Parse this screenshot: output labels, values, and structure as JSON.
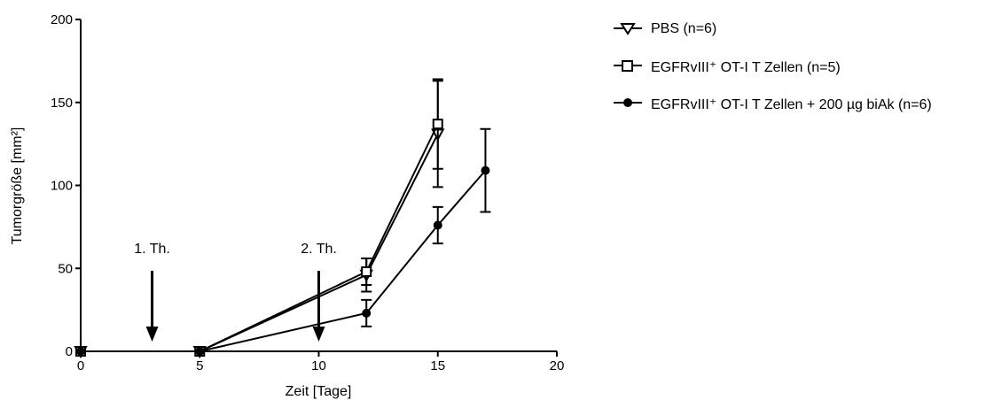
{
  "chart_data": {
    "type": "line",
    "xlabel": "Zeit [Tage]",
    "ylabel": "Tumorgröße [mm²]",
    "xlim": [
      0,
      20
    ],
    "ylim": [
      0,
      200
    ],
    "x_ticks": [
      0,
      5,
      10,
      15,
      20
    ],
    "y_ticks": [
      0,
      50,
      100,
      150,
      200
    ],
    "grid": false,
    "legend_position": "right",
    "series": [
      {
        "name": "PBS (n=6)",
        "marker": "triangle-down-open",
        "x": [
          0,
          5,
          12,
          15
        ],
        "y": [
          0,
          0,
          46,
          131
        ],
        "err": [
          0,
          0,
          10,
          32
        ]
      },
      {
        "name": "EGFRvIII⁺ OT-I T Zellen (n=5)",
        "marker": "square-open",
        "x": [
          0,
          5,
          12,
          15
        ],
        "y": [
          0,
          0,
          48,
          137
        ],
        "err": [
          0,
          0,
          8,
          27
        ]
      },
      {
        "name": "EGFRvIII⁺ OT-I T Zellen + 200 µg biAk (n=6)",
        "marker": "circle-filled",
        "x": [
          0,
          5,
          12,
          15,
          17
        ],
        "y": [
          0,
          0,
          23,
          76,
          109
        ],
        "err": [
          0,
          0,
          8,
          11,
          25
        ]
      }
    ],
    "annotations": [
      {
        "text": "1. Th.",
        "x": 3
      },
      {
        "text": "2. Th.",
        "x": 10
      }
    ]
  }
}
